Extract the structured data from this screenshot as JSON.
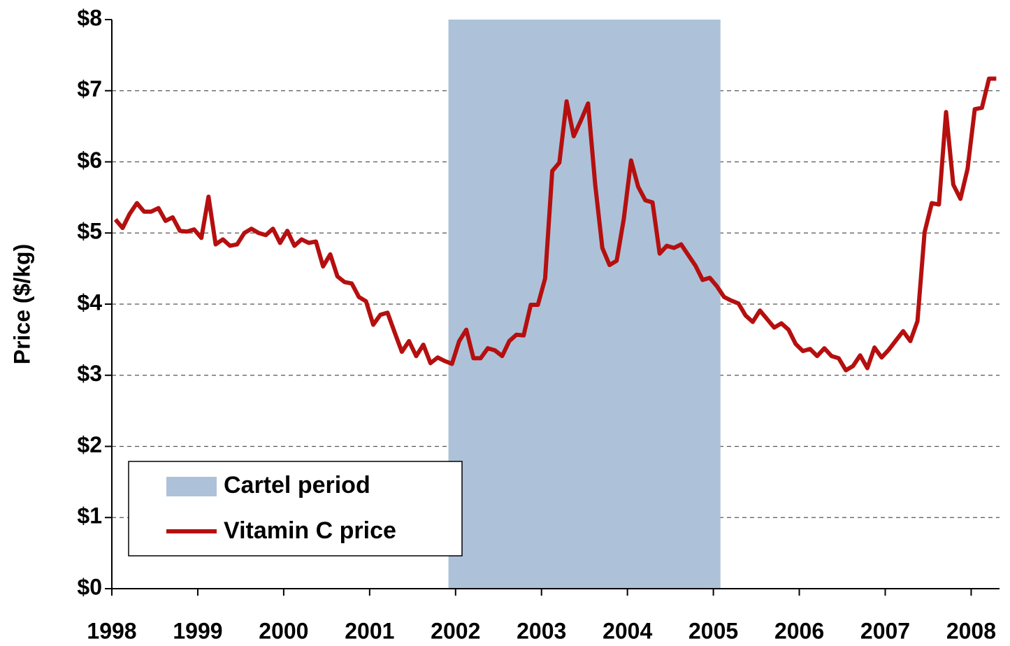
{
  "chart_data": {
    "type": "line",
    "y_label": "Price ($/kg)",
    "xlim": [
      1998,
      2008.33
    ],
    "xticks": [
      1998,
      1999,
      2000,
      2001,
      2002,
      2003,
      2004,
      2005,
      2006,
      2007,
      2008
    ],
    "ylim": [
      0,
      8
    ],
    "yticks": [
      {
        "value": 0,
        "label": "$0"
      },
      {
        "value": 1,
        "label": "$1"
      },
      {
        "value": 2,
        "label": "$2"
      },
      {
        "value": 3,
        "label": "$3"
      },
      {
        "value": 4,
        "label": "$4"
      },
      {
        "value": 5,
        "label": "$5"
      },
      {
        "value": 6,
        "label": "$6"
      },
      {
        "value": 7,
        "label": "$7"
      },
      {
        "value": 8,
        "label": "$8"
      }
    ],
    "grid": true,
    "legend": "lower left",
    "shaded_regions": [
      {
        "name": "Cartel period",
        "color": "#adc2d8",
        "x": [
          2001.917,
          2005.083
        ]
      }
    ],
    "x": [
      1998.042,
      1998.125,
      1998.208,
      1998.292,
      1998.375,
      1998.458,
      1998.542,
      1998.625,
      1998.708,
      1998.792,
      1998.875,
      1998.958,
      1999.042,
      1999.125,
      1999.208,
      1999.292,
      1999.375,
      1999.458,
      1999.542,
      1999.625,
      1999.708,
      1999.792,
      1999.875,
      1999.958,
      2000.042,
      2000.125,
      2000.208,
      2000.292,
      2000.375,
      2000.458,
      2000.542,
      2000.625,
      2000.708,
      2000.792,
      2000.875,
      2000.958,
      2001.042,
      2001.125,
      2001.208,
      2001.292,
      2001.375,
      2001.458,
      2001.542,
      2001.625,
      2001.708,
      2001.792,
      2001.875,
      2001.958,
      2002.042,
      2002.125,
      2002.208,
      2002.292,
      2002.375,
      2002.458,
      2002.542,
      2002.625,
      2002.708,
      2002.792,
      2002.875,
      2002.958,
      2003.042,
      2003.125,
      2003.208,
      2003.292,
      2003.375,
      2003.458,
      2003.542,
      2003.625,
      2003.708,
      2003.792,
      2003.875,
      2003.958,
      2004.042,
      2004.125,
      2004.208,
      2004.292,
      2004.375,
      2004.458,
      2004.542,
      2004.625,
      2004.708,
      2004.792,
      2004.875,
      2004.958,
      2005.042,
      2005.125,
      2005.208,
      2005.292,
      2005.375,
      2005.458,
      2005.542,
      2005.625,
      2005.708,
      2005.792,
      2005.875,
      2005.958,
      2006.042,
      2006.125,
      2006.208,
      2006.292,
      2006.375,
      2006.458,
      2006.542,
      2006.625,
      2006.708,
      2006.792,
      2006.875,
      2006.958,
      2007.042,
      2007.125,
      2007.208,
      2007.292,
      2007.375,
      2007.458,
      2007.542,
      2007.625,
      2007.708,
      2007.792,
      2007.875,
      2007.958,
      2008.042,
      2008.125,
      2008.208,
      2008.292
    ],
    "series": [
      {
        "name": "Vitamin C price",
        "color": "#b50f0f",
        "values": [
          5.19,
          5.07,
          5.27,
          5.42,
          5.3,
          5.3,
          5.35,
          5.17,
          5.22,
          5.03,
          5.02,
          5.05,
          4.93,
          5.51,
          4.84,
          4.91,
          4.82,
          4.84,
          5.0,
          5.06,
          5.0,
          4.97,
          5.06,
          4.86,
          5.03,
          4.82,
          4.91,
          4.86,
          4.88,
          4.53,
          4.7,
          4.39,
          4.31,
          4.29,
          4.1,
          4.04,
          3.71,
          3.85,
          3.88,
          3.6,
          3.33,
          3.48,
          3.27,
          3.43,
          3.17,
          3.25,
          3.2,
          3.16,
          3.48,
          3.64,
          3.24,
          3.24,
          3.38,
          3.35,
          3.27,
          3.48,
          3.57,
          3.56,
          3.99,
          3.99,
          4.36,
          5.87,
          5.99,
          6.85,
          6.36,
          6.58,
          6.82,
          5.68,
          4.79,
          4.55,
          4.61,
          5.2,
          6.02,
          5.65,
          5.46,
          5.43,
          4.71,
          4.82,
          4.79,
          4.84,
          4.69,
          4.54,
          4.34,
          4.37,
          4.25,
          4.1,
          4.05,
          4.01,
          3.84,
          3.75,
          3.91,
          3.79,
          3.67,
          3.73,
          3.64,
          3.44,
          3.34,
          3.37,
          3.27,
          3.38,
          3.27,
          3.24,
          3.07,
          3.13,
          3.28,
          3.1,
          3.39,
          3.25,
          3.36,
          3.49,
          3.62,
          3.48,
          3.76,
          5.01,
          5.42,
          5.4,
          6.7,
          5.68,
          5.48,
          5.9,
          6.74,
          6.76,
          7.17,
          7.17
        ]
      }
    ]
  }
}
